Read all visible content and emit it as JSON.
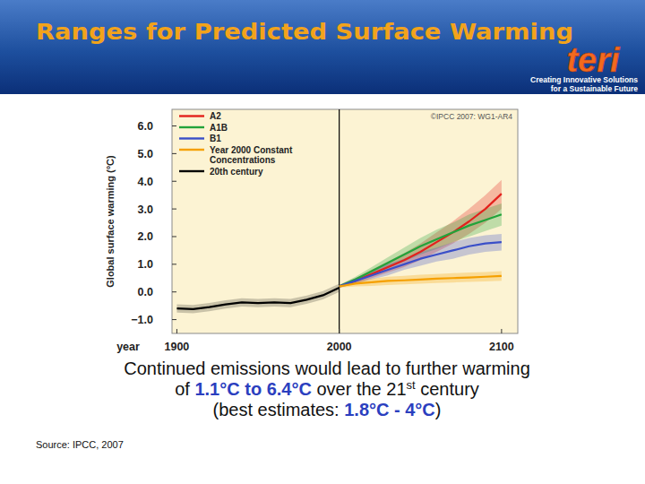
{
  "header": {
    "title": "Ranges for Predicted Surface Warming",
    "logo": "teri",
    "tagline": [
      "Creating Innovative Solutions",
      "for a Sustainable Future"
    ]
  },
  "chart_data": {
    "type": "line",
    "x_label": "year",
    "y_label": "Global surface warming (°C)",
    "annotation": "©IPCC 2007: WG1-AR4",
    "divider_x": 2000,
    "x": [
      1900,
      1910,
      1920,
      1930,
      1940,
      1950,
      1960,
      1970,
      1980,
      1990,
      2000,
      2010,
      2020,
      2030,
      2040,
      2050,
      2060,
      2070,
      2080,
      2090,
      2100
    ],
    "xlim": [
      1897,
      2110
    ],
    "xticks": [
      1900,
      2000,
      2100
    ],
    "ylim": [
      -1.5,
      6.6
    ],
    "yticks": [
      {
        "value": -1,
        "label": "−1.0"
      },
      {
        "value": 0,
        "label": "0.0"
      },
      {
        "value": 1,
        "label": "1.0"
      },
      {
        "value": 2,
        "label": "2.0"
      },
      {
        "value": 3,
        "label": "3.0"
      },
      {
        "value": 4,
        "label": "4.0"
      },
      {
        "value": 5,
        "label": "5.0"
      },
      {
        "value": 6,
        "label": "6.0"
      }
    ],
    "grid": false,
    "legend": "top-left",
    "series": [
      {
        "name": "A2",
        "color": "#e3211c",
        "values": [
          null,
          null,
          null,
          null,
          null,
          null,
          null,
          null,
          null,
          null,
          0.2,
          0.4,
          0.65,
          0.9,
          1.15,
          1.45,
          1.8,
          2.15,
          2.55,
          3.0,
          3.55
        ],
        "lower": [
          null,
          null,
          null,
          null,
          null,
          null,
          null,
          null,
          null,
          null,
          0.15,
          0.3,
          0.5,
          0.7,
          0.9,
          1.15,
          1.45,
          1.75,
          2.1,
          2.5,
          3.0
        ],
        "upper": [
          null,
          null,
          null,
          null,
          null,
          null,
          null,
          null,
          null,
          null,
          0.25,
          0.5,
          0.8,
          1.1,
          1.4,
          1.75,
          2.15,
          2.55,
          3.0,
          3.5,
          4.05
        ]
      },
      {
        "name": "A1B",
        "color": "#22a33a",
        "values": [
          null,
          null,
          null,
          null,
          null,
          null,
          null,
          null,
          null,
          null,
          0.2,
          0.45,
          0.75,
          1.05,
          1.35,
          1.65,
          1.9,
          2.15,
          2.4,
          2.6,
          2.8
        ],
        "lower": [
          null,
          null,
          null,
          null,
          null,
          null,
          null,
          null,
          null,
          null,
          0.15,
          0.35,
          0.6,
          0.85,
          1.1,
          1.35,
          1.55,
          1.8,
          2.0,
          2.2,
          2.4
        ],
        "upper": [
          null,
          null,
          null,
          null,
          null,
          null,
          null,
          null,
          null,
          null,
          0.25,
          0.55,
          0.9,
          1.25,
          1.6,
          1.95,
          2.25,
          2.5,
          2.8,
          3.0,
          3.2
        ]
      },
      {
        "name": "B1",
        "color": "#3a4fc8",
        "values": [
          null,
          null,
          null,
          null,
          null,
          null,
          null,
          null,
          null,
          null,
          0.2,
          0.4,
          0.6,
          0.8,
          1.0,
          1.2,
          1.35,
          1.5,
          1.65,
          1.75,
          1.8
        ],
        "lower": [
          null,
          null,
          null,
          null,
          null,
          null,
          null,
          null,
          null,
          null,
          0.15,
          0.3,
          0.45,
          0.6,
          0.8,
          0.95,
          1.1,
          1.2,
          1.35,
          1.45,
          1.5
        ],
        "upper": [
          null,
          null,
          null,
          null,
          null,
          null,
          null,
          null,
          null,
          null,
          0.25,
          0.5,
          0.75,
          1.0,
          1.2,
          1.45,
          1.6,
          1.8,
          1.95,
          2.05,
          2.1
        ]
      },
      {
        "name": "Year 2000 Constant Concentrations",
        "color": "#f5a000",
        "values": [
          null,
          null,
          null,
          null,
          null,
          null,
          null,
          null,
          null,
          null,
          0.2,
          0.3,
          0.35,
          0.4,
          0.42,
          0.45,
          0.48,
          0.5,
          0.52,
          0.55,
          0.58
        ],
        "lower": [
          null,
          null,
          null,
          null,
          null,
          null,
          null,
          null,
          null,
          null,
          0.15,
          0.2,
          0.22,
          0.25,
          0.27,
          0.3,
          0.32,
          0.34,
          0.36,
          0.38,
          0.4
        ],
        "upper": [
          null,
          null,
          null,
          null,
          null,
          null,
          null,
          null,
          null,
          null,
          0.25,
          0.4,
          0.48,
          0.55,
          0.58,
          0.62,
          0.65,
          0.68,
          0.7,
          0.72,
          0.75
        ]
      },
      {
        "name": "20th century",
        "color": "#000000",
        "values": [
          -0.6,
          -0.62,
          -0.55,
          -0.45,
          -0.38,
          -0.4,
          -0.38,
          -0.4,
          -0.28,
          -0.12,
          0.15,
          null,
          null,
          null,
          null,
          null,
          null,
          null,
          null,
          null,
          null
        ],
        "lower": [
          -0.75,
          -0.77,
          -0.7,
          -0.6,
          -0.53,
          -0.55,
          -0.53,
          -0.55,
          -0.43,
          -0.27,
          0.0,
          null,
          null,
          null,
          null,
          null,
          null,
          null,
          null,
          null,
          null
        ],
        "upper": [
          -0.45,
          -0.47,
          -0.4,
          -0.3,
          -0.23,
          -0.25,
          -0.23,
          -0.25,
          -0.13,
          0.03,
          0.3,
          null,
          null,
          null,
          null,
          null,
          null,
          null,
          null,
          null,
          null
        ]
      }
    ]
  },
  "caption": [
    [
      {
        "text": "Continued emissions would lead to further warming"
      }
    ],
    [
      {
        "text": "of "
      },
      {
        "text": "1.1°C to 6.4°C",
        "highlight": true
      },
      {
        "text": " over the 21"
      },
      {
        "text": "st",
        "superscript": true
      },
      {
        "text": " century"
      }
    ],
    [
      {
        "text": "(best estimates: "
      },
      {
        "text": "1.8°C - 4°C",
        "highlight": true
      },
      {
        "text": ")"
      }
    ]
  ],
  "source": "Source: IPCC, 2007"
}
